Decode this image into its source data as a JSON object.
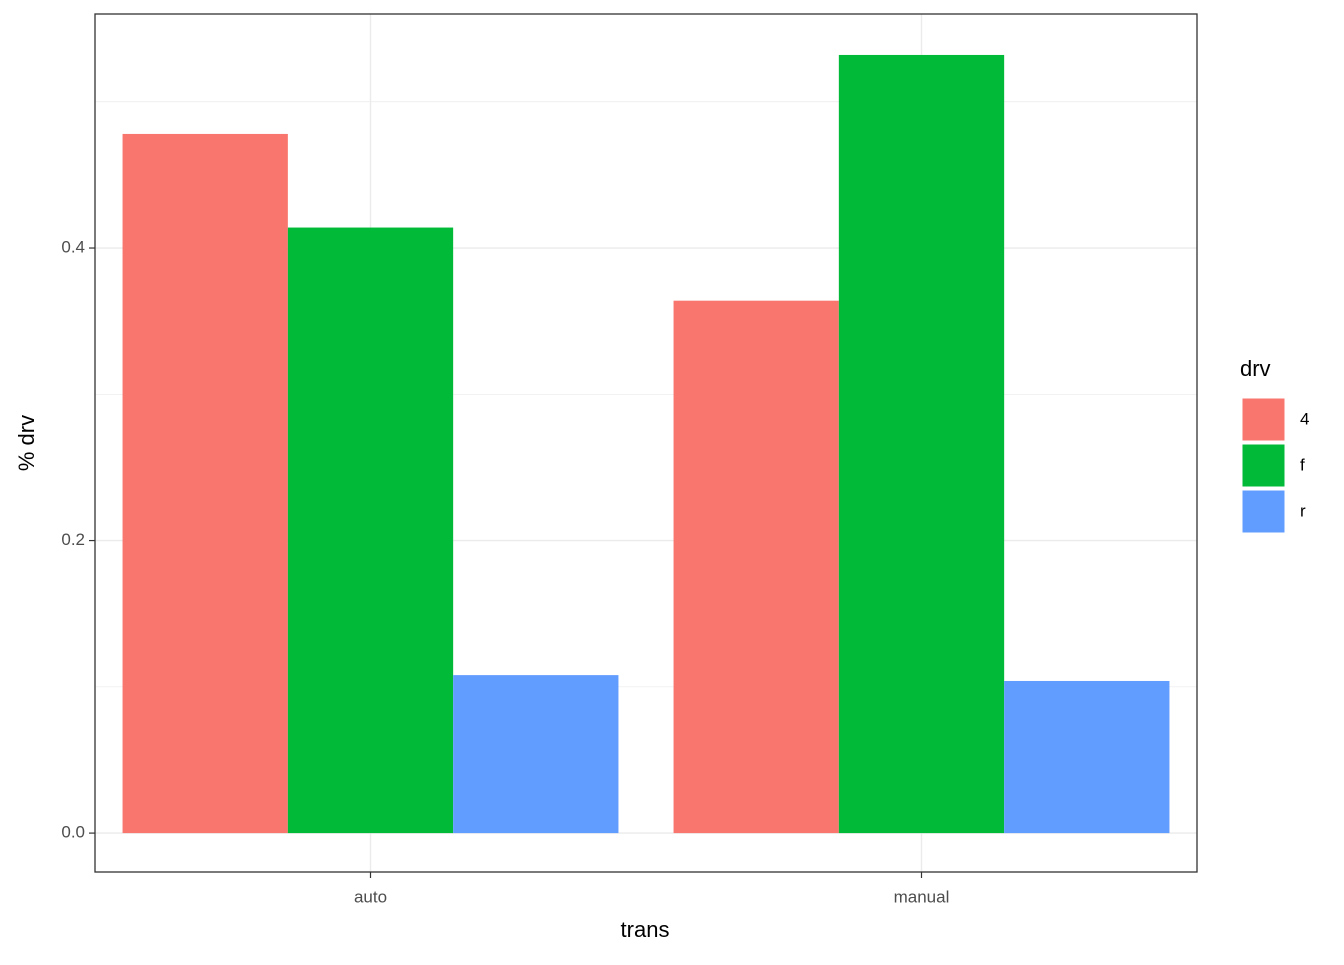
{
  "chart_data": {
    "type": "bar",
    "x_label": "trans",
    "y_label": "% drv",
    "categories": [
      "auto",
      "manual"
    ],
    "series": [
      {
        "name": "4",
        "color": "#f8766d",
        "values": [
          0.478,
          0.364
        ]
      },
      {
        "name": "f",
        "color": "#00ba38",
        "values": [
          0.414,
          0.532
        ]
      },
      {
        "name": "r",
        "color": "#619cff",
        "values": [
          0.108,
          0.104
        ]
      }
    ],
    "legend_title": "drv",
    "ylim": [
      -0.0266,
      0.56
    ],
    "yticks": [
      {
        "value": 0,
        "label": "0.0"
      },
      0.2,
      0.4
    ],
    "grid": true,
    "legend": "right"
  }
}
